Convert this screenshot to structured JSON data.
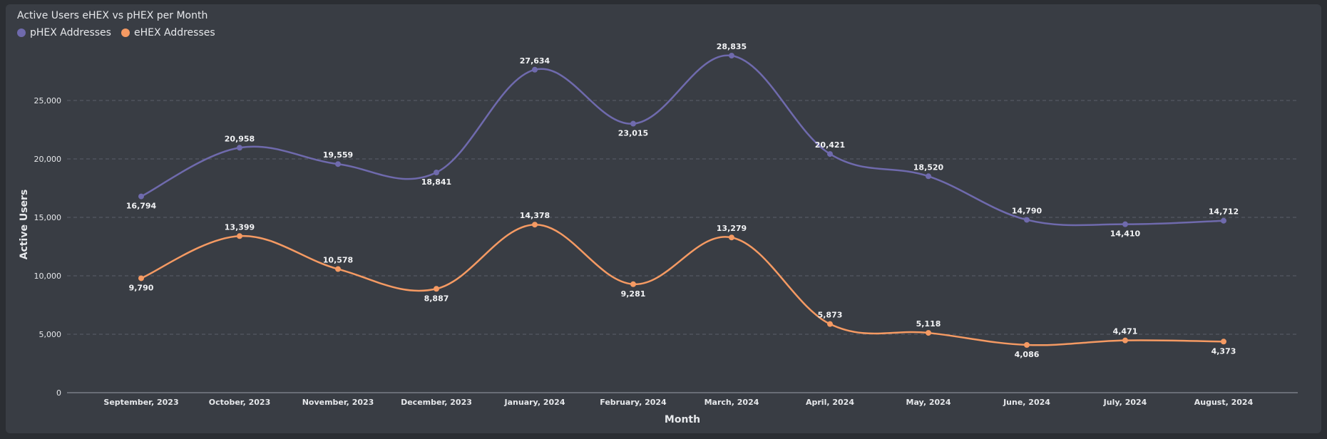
{
  "chart_data": {
    "type": "line",
    "title": "Active Users eHEX vs pHEX per Month",
    "xlabel": "Month",
    "ylabel": "Active Users",
    "ylim": [
      0,
      30000
    ],
    "yticks": [
      0,
      5000,
      10000,
      15000,
      20000,
      25000
    ],
    "ytick_labels": [
      "0",
      "5,000",
      "10,000",
      "15,000",
      "20,000",
      "25,000"
    ],
    "grid": true,
    "legend_position": "top-left",
    "categories": [
      "September, 2023",
      "October, 2023",
      "November, 2023",
      "December, 2023",
      "January, 2024",
      "February, 2024",
      "March, 2024",
      "April, 2024",
      "May, 2024",
      "June, 2024",
      "July, 2024",
      "August, 2024"
    ],
    "series": [
      {
        "name": "pHEX Addresses",
        "color": "#6f6aad",
        "values": [
          16794,
          20958,
          19559,
          18841,
          27634,
          23015,
          28835,
          20421,
          18520,
          14790,
          14410,
          14712
        ],
        "labels": [
          "16,794",
          "20,958",
          "19,559",
          "18,841",
          "27,634",
          "23,015",
          "28,835",
          "20,421",
          "18,520",
          "14,790",
          "14,410",
          "14,712"
        ]
      },
      {
        "name": "eHEX Addresses",
        "color": "#f59a63",
        "values": [
          9790,
          13399,
          10578,
          8887,
          14378,
          9281,
          13279,
          5873,
          5118,
          4086,
          4471,
          4373
        ],
        "labels": [
          "9,790",
          "13,399",
          "10,578",
          "8,887",
          "14,378",
          "9,281",
          "13,279",
          "5,873",
          "5,118",
          "4,086",
          "4,471",
          "4,373"
        ]
      }
    ]
  }
}
